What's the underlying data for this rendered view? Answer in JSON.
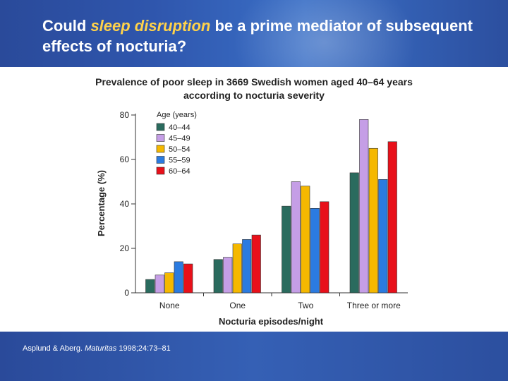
{
  "slide": {
    "title_part1": "Could ",
    "title_em": "sleep disruption",
    "title_part2": " be a prime mediator of subsequent effects of nocturia?",
    "citation_authors": "Asplund & Aberg. ",
    "citation_journal": "Maturitas",
    "citation_ref": " 1998;24:73–81"
  },
  "chart_data": {
    "type": "bar",
    "title_line1": "Prevalence of poor sleep in 3669 Swedish women aged 40–64 years",
    "title_line2": "according to nocturia severity",
    "ylabel": "Percentage (%)",
    "xlabel": "Nocturia episodes/night",
    "ylim": [
      0,
      80
    ],
    "yticks": [
      0,
      20,
      40,
      60,
      80
    ],
    "categories": [
      "None",
      "One",
      "Two",
      "Three or more"
    ],
    "legend_title": "Age (years)",
    "legend_position": "top-left",
    "series": [
      {
        "name": "40–44",
        "color": "#2a6b5e",
        "values": [
          6,
          15,
          39,
          54
        ]
      },
      {
        "name": "45–49",
        "color": "#c59ee6",
        "values": [
          8,
          16,
          50,
          78
        ]
      },
      {
        "name": "50–54",
        "color": "#f5b800",
        "values": [
          9,
          22,
          48,
          65
        ]
      },
      {
        "name": "55–59",
        "color": "#2b7be0",
        "values": [
          14,
          24,
          38,
          51
        ]
      },
      {
        "name": "60–64",
        "color": "#e8101a",
        "values": [
          13,
          26,
          41,
          68
        ]
      }
    ]
  }
}
